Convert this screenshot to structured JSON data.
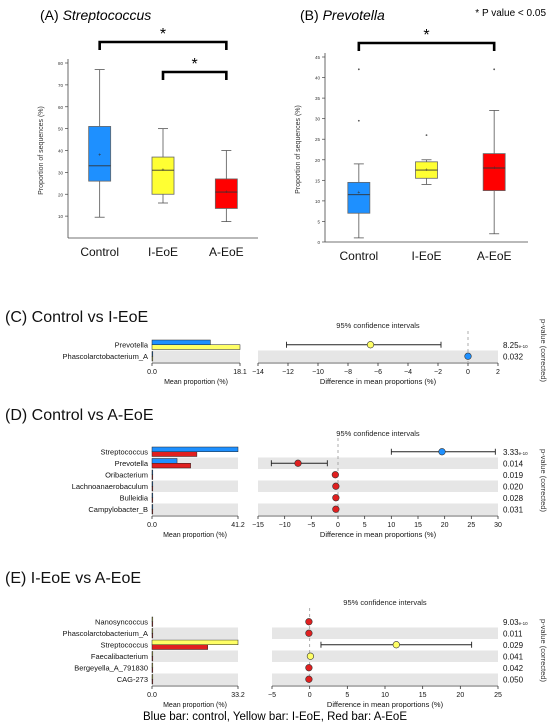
{
  "header": {
    "pvalue_note": "* P value < 0.05"
  },
  "panel_a": {
    "label": "(A) ",
    "title": "Streptococcus",
    "ylabel": "Proportion of sequences (%)",
    "type": "box",
    "categories": [
      "Control",
      "I-EoE",
      "A-EoE"
    ],
    "ylim": [
      0,
      80
    ],
    "yticks": [
      10,
      20,
      30,
      40,
      50,
      60,
      70,
      80
    ],
    "boxes": [
      {
        "name": "Control",
        "whisker_low": 9.5,
        "q1": 26,
        "median": 33,
        "q3": 51,
        "whisker_high": 77,
        "mean": 38,
        "color": "#1e90ff"
      },
      {
        "name": "I-EoE",
        "whisker_low": 16,
        "q1": 20,
        "median": 31,
        "q3": 37,
        "whisker_high": 50,
        "mean": 31,
        "color": "#ffff33"
      },
      {
        "name": "A-EoE",
        "whisker_low": 7.5,
        "q1": 13.5,
        "median": 21,
        "q3": 27,
        "whisker_high": 40,
        "mean": 21,
        "color": "#ff0000"
      }
    ],
    "sig_brackets": [
      {
        "from": "Control",
        "to": "A-EoE",
        "mark": "*"
      },
      {
        "from": "I-EoE",
        "to": "A-EoE",
        "mark": "*"
      }
    ]
  },
  "panel_b": {
    "label": "(B) ",
    "title": "Prevotella",
    "ylabel": "Proportion of sequences (%)",
    "type": "box",
    "categories": [
      "Control",
      "I-EoE",
      "A-EoE"
    ],
    "ylim": [
      0,
      45
    ],
    "yticks": [
      0,
      5,
      10,
      15,
      20,
      25,
      30,
      35,
      40,
      45
    ],
    "boxes": [
      {
        "name": "Control",
        "whisker_low": 1,
        "q1": 7,
        "median": 11.5,
        "q3": 14.5,
        "whisker_high": 19,
        "mean": 12,
        "outliers": [
          29.5,
          42
        ],
        "color": "#1e90ff"
      },
      {
        "name": "I-EoE",
        "whisker_low": 14,
        "q1": 15.5,
        "median": 17.5,
        "q3": 19.5,
        "whisker_high": 20,
        "mean": 17.5,
        "outliers": [
          26
        ],
        "color": "#ffff33"
      },
      {
        "name": "A-EoE",
        "whisker_low": 2,
        "q1": 12.5,
        "median": 18,
        "q3": 21.5,
        "whisker_high": 32,
        "mean": 18,
        "outliers": [
          42
        ],
        "color": "#ff0000"
      }
    ],
    "sig_brackets": [
      {
        "from": "Control",
        "to": "A-EoE",
        "mark": "*"
      }
    ]
  },
  "chart_data": [
    {
      "type": "bar",
      "panel": "(C) Control vs I-EoE",
      "taxa": [
        "Prevotella",
        "Phascolarctobacterium_A"
      ],
      "max_proportion": "18.1",
      "xlabel_left": "Mean proportion (%)",
      "xlabel_right": "Difference in mean proportions (%)",
      "ci_title": "95% confidence intervals",
      "xlim": [
        -14,
        2
      ],
      "xticks": [
        -14,
        -12,
        -10,
        -8,
        -6,
        -4,
        -2,
        0,
        2
      ],
      "pvalue_axis": "p-value (corrected)",
      "rows": [
        {
          "taxon": "Prevotella",
          "blue": 12.0,
          "yellow": 18.1,
          "red": null,
          "diff": -6.5,
          "ci_low": -12.1,
          "ci_high": -1.8,
          "dot": "#ffff66",
          "pvalue": "8.25",
          "pexp": "e-10"
        },
        {
          "taxon": "Phascolarctobacterium_A",
          "blue": 0.1,
          "yellow": 0.0,
          "red": null,
          "diff": 0.0,
          "ci_low": 0.0,
          "ci_high": 0.0,
          "dot": "#1e90ff",
          "pvalue": "0.032",
          "pexp": ""
        }
      ]
    },
    {
      "type": "bar",
      "panel": "(D) Control vs A-EoE",
      "taxa": [
        "Streptococcus",
        "Prevotella",
        "Oribacterium",
        "Lachnoanaerobaculum",
        "Bulleidia",
        "Campylobacter_B"
      ],
      "max_proportion": "41.2",
      "xlabel_left": "Mean proportion (%)",
      "xlabel_right": "Difference in mean proportions (%)",
      "ci_title": "95% confidence intervals",
      "xlim": [
        -15,
        30
      ],
      "xticks": [
        -15,
        -10,
        -5,
        0,
        5,
        10,
        15,
        20,
        25,
        30
      ],
      "pvalue_axis": "p-value (corrected)",
      "rows": [
        {
          "taxon": "Streptococcus",
          "blue": 41.2,
          "yellow": null,
          "red": 21.5,
          "diff": 19.5,
          "ci_low": 10,
          "ci_high": 29.5,
          "dot": "#1e90ff",
          "pvalue": "3.33",
          "pexp": "e-10"
        },
        {
          "taxon": "Prevotella",
          "blue": 12.0,
          "yellow": null,
          "red": 18.5,
          "diff": -7.5,
          "ci_low": -12.5,
          "ci_high": -2,
          "dot": "#e02020",
          "pvalue": "0.014",
          "pexp": ""
        },
        {
          "taxon": "Oribacterium",
          "blue": 0.1,
          "yellow": null,
          "red": 0.3,
          "diff": -0.5,
          "ci_low": -0.5,
          "ci_high": -0.5,
          "dot": "#e02020",
          "pvalue": "0.019",
          "pexp": ""
        },
        {
          "taxon": "Lachnoanaerobaculum",
          "blue": 0.1,
          "yellow": null,
          "red": 0.3,
          "diff": -0.4,
          "ci_low": -0.4,
          "ci_high": -0.4,
          "dot": "#e02020",
          "pvalue": "0.020",
          "pexp": ""
        },
        {
          "taxon": "Bulleidia",
          "blue": 0.1,
          "yellow": null,
          "red": 0.3,
          "diff": -0.4,
          "ci_low": -0.4,
          "ci_high": -0.4,
          "dot": "#e02020",
          "pvalue": "0.028",
          "pexp": ""
        },
        {
          "taxon": "Campylobacter_B",
          "blue": 0.1,
          "yellow": null,
          "red": 0.3,
          "diff": -0.4,
          "ci_low": -0.4,
          "ci_high": -0.4,
          "dot": "#e02020",
          "pvalue": "0.031",
          "pexp": ""
        }
      ]
    },
    {
      "type": "bar",
      "panel": "(E) I-EoE  vs A-EoE",
      "taxa": [
        "Nanosyncoccus",
        "Phascolarctobacterium_A",
        "Streptococcus",
        "Faecalibacterium",
        "Bergeyella_A_791830",
        "CAG-273"
      ],
      "max_proportion": "33.2",
      "xlabel_left": "Mean proportion (%)",
      "xlabel_right": "Difference in mean proportions (%)",
      "ci_title": "95% confidence intervals",
      "xlim": [
        -5,
        25
      ],
      "xticks": [
        -5,
        0,
        5,
        10,
        15,
        20,
        25
      ],
      "pvalue_axis": "p-value (corrected)",
      "rows": [
        {
          "taxon": "Nanosyncoccus",
          "blue": null,
          "yellow": 0.1,
          "red": 0.2,
          "diff": -0.1,
          "ci_low": -0.1,
          "ci_high": -0.1,
          "dot": "#e02020",
          "pvalue": "9.03",
          "pexp": "e-10"
        },
        {
          "taxon": "Phascolarctobacterium_A",
          "blue": null,
          "yellow": 0.1,
          "red": 0.2,
          "diff": -0.1,
          "ci_low": -0.1,
          "ci_high": -0.1,
          "dot": "#e02020",
          "pvalue": "0.011",
          "pexp": ""
        },
        {
          "taxon": "Streptococcus",
          "blue": null,
          "yellow": 33.2,
          "red": 21.5,
          "diff": 11.5,
          "ci_low": 1.5,
          "ci_high": 21.5,
          "dot": "#ffff66",
          "pvalue": "0.029",
          "pexp": ""
        },
        {
          "taxon": "Faecalibacterium",
          "blue": null,
          "yellow": 0.2,
          "red": 0.1,
          "diff": 0.1,
          "ci_low": 0.1,
          "ci_high": 0.1,
          "dot": "#ffff66",
          "pvalue": "0.041",
          "pexp": ""
        },
        {
          "taxon": "Bergeyella_A_791830",
          "blue": null,
          "yellow": 0.1,
          "red": 0.2,
          "diff": -0.1,
          "ci_low": -0.1,
          "ci_high": -0.1,
          "dot": "#e02020",
          "pvalue": "0.042",
          "pexp": ""
        },
        {
          "taxon": "CAG-273",
          "blue": null,
          "yellow": 0.1,
          "red": 0.2,
          "diff": -0.1,
          "ci_low": -0.1,
          "ci_high": -0.1,
          "dot": "#e02020",
          "pvalue": "0.050",
          "pexp": ""
        }
      ]
    }
  ],
  "footer": {
    "caption": "Blue bar: control, Yellow bar: I-EoE, Red bar: A-EoE"
  },
  "colors": {
    "blue": "#1e90ff",
    "yellow": "#ffff66",
    "red": "#e02020",
    "stripe": "#e6e6e6",
    "ci_bg": "#e6e6e6"
  }
}
